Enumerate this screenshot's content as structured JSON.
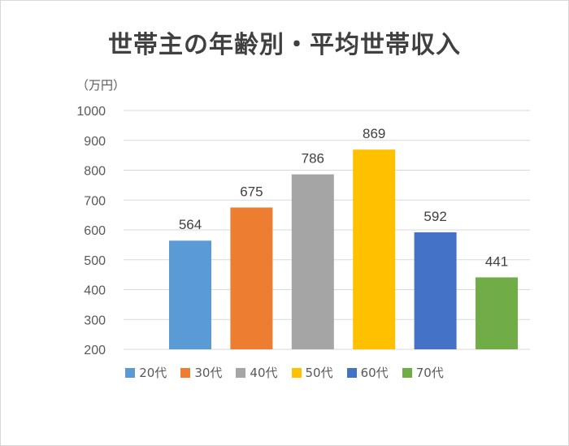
{
  "chart_data": {
    "type": "bar",
    "title": "世帯主の年齢別・平均世帯収入",
    "unit_label": "（万円）",
    "categories": [
      "20代",
      "30代",
      "40代",
      "50代",
      "60代",
      "70代"
    ],
    "values": [
      564,
      675,
      786,
      869,
      592,
      441
    ],
    "colors": [
      "#5b9bd5",
      "#ed7d31",
      "#a5a5a5",
      "#ffc000",
      "#4472c4",
      "#70ad47"
    ],
    "ylim": [
      200,
      1000
    ],
    "yticks": [
      200,
      300,
      400,
      500,
      600,
      700,
      800,
      900,
      1000
    ],
    "grid": true,
    "legend_position": "bottom"
  }
}
